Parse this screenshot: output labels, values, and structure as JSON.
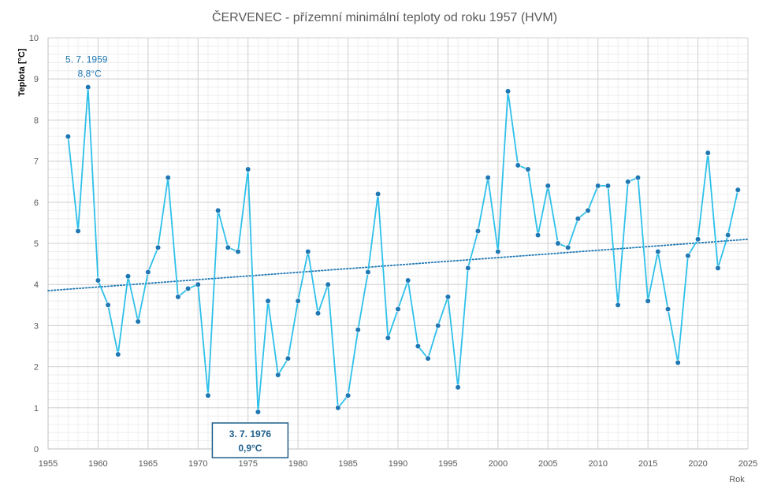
{
  "chart_data": {
    "type": "line",
    "title": "ČERVENEC - přízemní minimální teploty od roku 1957 (HVM)",
    "xlabel": "Rok",
    "ylabel": "Teplota  [°C]",
    "xlim": [
      1955,
      2025
    ],
    "ylim": [
      0,
      10
    ],
    "x_ticks": [
      1955,
      1960,
      1965,
      1970,
      1975,
      1980,
      1985,
      1990,
      1995,
      2000,
      2005,
      2010,
      2015,
      2020,
      2025
    ],
    "y_ticks": [
      0,
      1,
      2,
      3,
      4,
      5,
      6,
      7,
      8,
      9,
      10
    ],
    "grid": true,
    "series": [
      {
        "color": "#2ec0ea",
        "marker_color": "#1f78b4",
        "x": [
          1957,
          1958,
          1959,
          1960,
          1961,
          1962,
          1963,
          1964,
          1965,
          1966,
          1967,
          1968,
          1969,
          1970,
          1971,
          1972,
          1973,
          1974,
          1975,
          1976,
          1977,
          1978,
          1979,
          1980,
          1981,
          1982,
          1983,
          1984,
          1985,
          1986,
          1987,
          1988,
          1989,
          1990,
          1991,
          1992,
          1993,
          1994,
          1995,
          1996,
          1997,
          1998,
          1999,
          2000,
          2001,
          2002,
          2003,
          2004,
          2005,
          2006,
          2007,
          2008,
          2009,
          2010,
          2011,
          2012,
          2013,
          2014,
          2015,
          2016,
          2017,
          2018,
          2019,
          2020,
          2021,
          2022,
          2023,
          2024
        ],
        "values": [
          7.6,
          5.3,
          8.8,
          4.1,
          3.5,
          2.3,
          4.2,
          3.1,
          4.3,
          4.9,
          6.6,
          3.7,
          3.9,
          4.0,
          1.3,
          5.8,
          4.9,
          4.8,
          6.8,
          0.9,
          3.6,
          1.8,
          2.2,
          3.6,
          4.8,
          3.3,
          4.0,
          1.0,
          1.3,
          2.9,
          4.3,
          6.2,
          2.7,
          3.4,
          4.1,
          2.5,
          2.2,
          3.0,
          3.7,
          1.5,
          4.4,
          5.3,
          6.6,
          4.8,
          8.7,
          6.9,
          6.8,
          5.2,
          6.4,
          5.0,
          4.9,
          5.6,
          5.8,
          6.4,
          6.4,
          3.5,
          6.5,
          6.6,
          3.6,
          4.8,
          3.4,
          2.1,
          4.7,
          5.1,
          7.2,
          4.4,
          5.2,
          6.3
        ]
      }
    ],
    "trendline": {
      "style": "dotted",
      "color": "#1f78b4",
      "x": [
        1955,
        2025
      ],
      "values": [
        3.85,
        5.1
      ]
    },
    "annotations": {
      "max": {
        "date": "5. 7. 1959",
        "value_text": "8,8°C",
        "x": 1959,
        "y": 8.8
      },
      "min": {
        "date": "3. 7. 1976",
        "value_text": "0,9°C",
        "x": 1976,
        "y": 0.9
      }
    }
  }
}
